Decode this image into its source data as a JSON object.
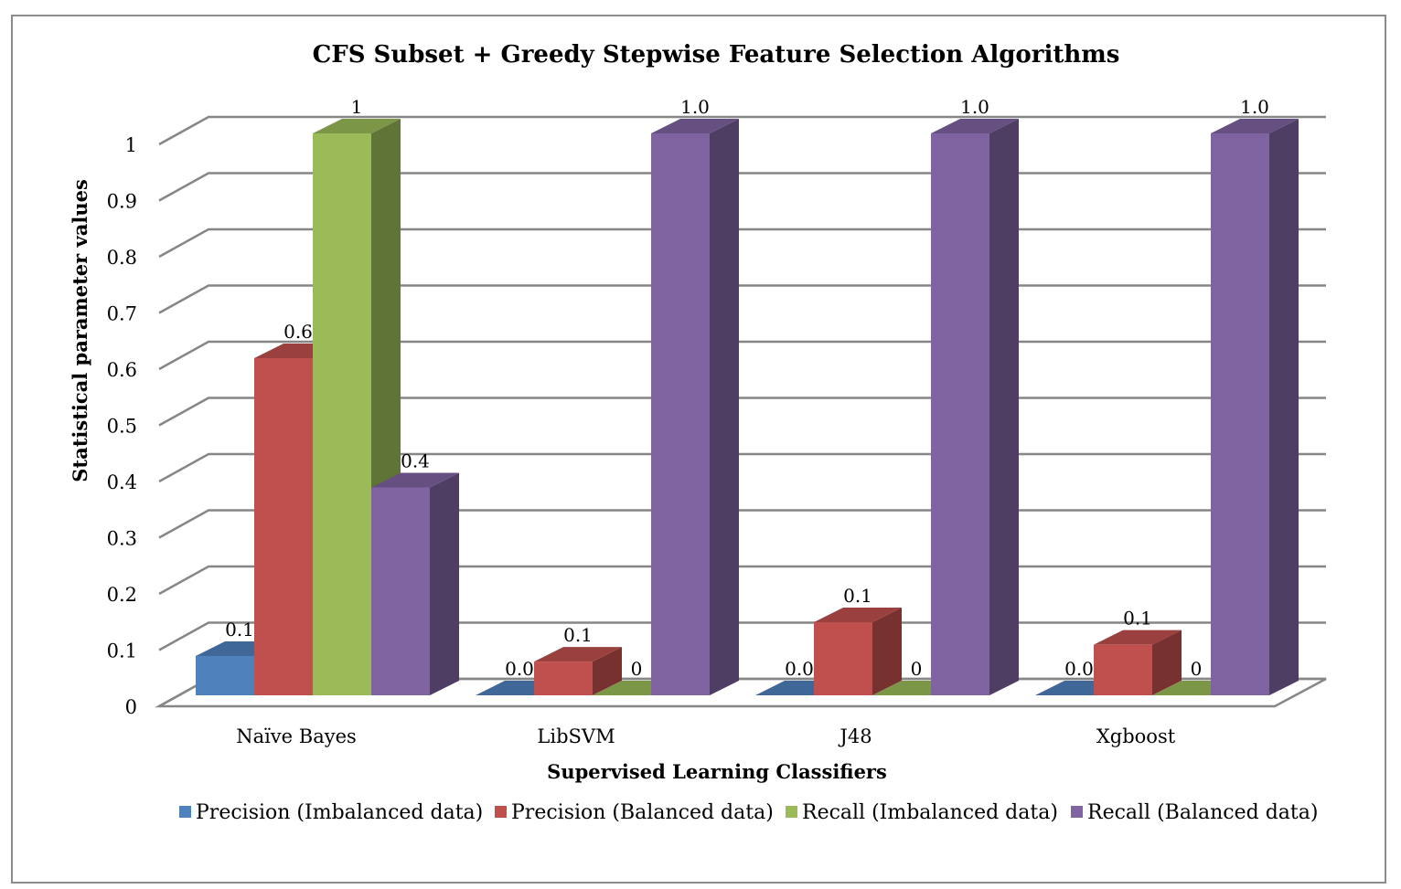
{
  "chart_data": {
    "type": "bar",
    "title": "CFS Subset + Greedy Stepwise Feature Selection Algorithms",
    "xlabel": "Supervised Learning Classifiers",
    "ylabel": "Statistical parameter values",
    "ylim": [
      0,
      1
    ],
    "yticks": [
      "0",
      "0.1",
      "0.2",
      "0.3",
      "0.4",
      "0.5",
      "0.6",
      "0.7",
      "0.8",
      "0.9",
      "1"
    ],
    "categories": [
      "Naïve Bayes",
      "LibSVM",
      "J48",
      "Xgboost"
    ],
    "series": [
      {
        "name": "Precision (Imbalanced data)",
        "color": "#4f81bd",
        "values": [
          0.07,
          0.0,
          0.0,
          0.0
        ],
        "labels": [
          "0.1",
          "0.0",
          "0.0",
          "0.0"
        ]
      },
      {
        "name": "Precision (Balanced data)",
        "color": "#c0504d",
        "values": [
          0.6,
          0.06,
          0.13,
          0.09
        ],
        "labels": [
          "0.6",
          "0.1",
          "0.1",
          "0.1"
        ]
      },
      {
        "name": "Recall (Imbalanced data)",
        "color": "#9bbb59",
        "values": [
          1.0,
          0.0,
          0.0,
          0.0
        ],
        "labels": [
          "1",
          "0",
          "0",
          "0"
        ]
      },
      {
        "name": "Recall (Balanced data)",
        "color": "#8064a2",
        "values": [
          0.37,
          1.0,
          1.0,
          1.0
        ],
        "labels": [
          "0.4",
          "1.0",
          "1.0",
          "1.0"
        ]
      }
    ],
    "grid": true,
    "legend": "bottom"
  }
}
